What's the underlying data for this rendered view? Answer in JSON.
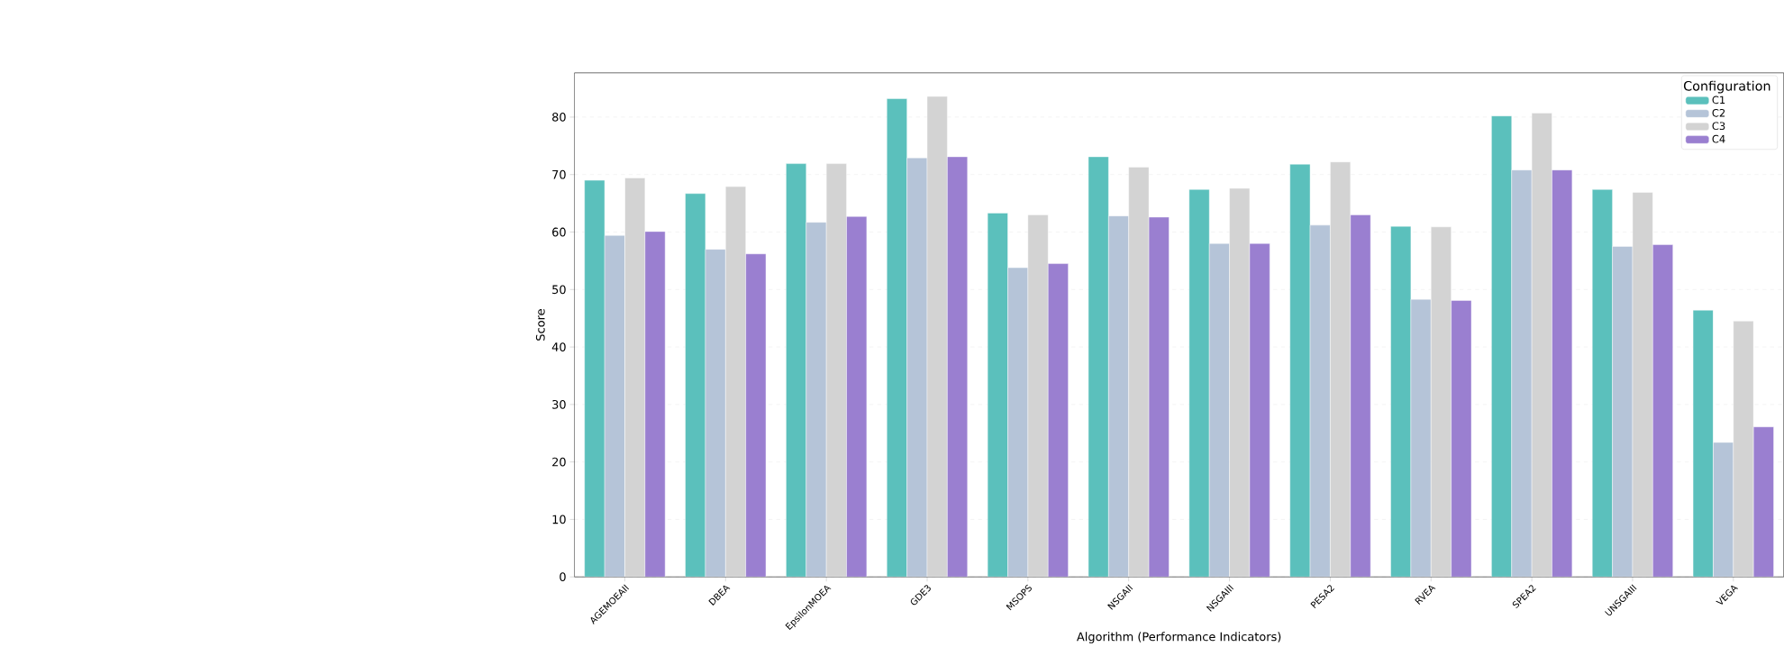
{
  "chart_data": {
    "type": "bar",
    "xlabel": "Algorithm (Performance Indicators)",
    "ylabel": "Score",
    "legend_title": "Configuration",
    "categories": [
      "AGEMOEAII",
      "DBEA",
      "EpsilonMOEA",
      "GDE3",
      "MSOPS",
      "NSGAII",
      "NSGAIII",
      "PESA2",
      "RVEA",
      "SPEA2",
      "UNSGAIII",
      "VEGA"
    ],
    "series": [
      {
        "name": "C1",
        "color": "#5bc0bc",
        "values": [
          69.0,
          66.7,
          71.9,
          83.2,
          63.3,
          73.1,
          67.4,
          71.8,
          61.0,
          80.2,
          67.4,
          46.4
        ]
      },
      {
        "name": "C2",
        "color": "#b5c4d8",
        "values": [
          59.4,
          57.0,
          61.7,
          72.9,
          53.8,
          62.8,
          58.0,
          61.2,
          48.3,
          70.8,
          57.5,
          23.4
        ]
      },
      {
        "name": "C3",
        "color": "#d3d3d3",
        "values": [
          69.4,
          67.9,
          71.9,
          83.6,
          63.0,
          71.3,
          67.6,
          72.2,
          60.9,
          80.7,
          66.9,
          44.5
        ]
      },
      {
        "name": "C4",
        "color": "#9a7fd0",
        "values": [
          60.1,
          56.2,
          62.7,
          73.1,
          54.5,
          62.6,
          58.0,
          63.0,
          48.1,
          70.8,
          57.8,
          26.1
        ]
      }
    ],
    "ylim": [
      0,
      87.7
    ],
    "yticks": [
      0,
      10,
      20,
      30,
      40,
      50,
      60,
      70,
      80
    ],
    "grid": "y",
    "legend": "top right"
  }
}
